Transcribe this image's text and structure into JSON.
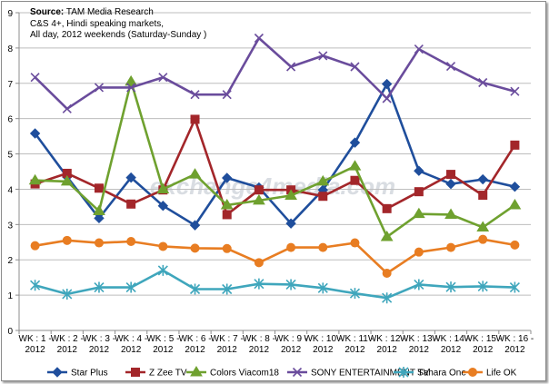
{
  "chart_data": {
    "type": "line",
    "source_label": "Source:",
    "source_name": "TAM Media Research",
    "notes": [
      "C&S 4+, Hindi speaking  markets,",
      "All day, 2012 weekends (Saturday-Sunday )"
    ],
    "categories": [
      [
        "WK : 1 -",
        "2012"
      ],
      [
        "WK : 2 -",
        "2012"
      ],
      [
        "WK : 3 -",
        "2012"
      ],
      [
        "WK : 4 -",
        "2012"
      ],
      [
        "WK : 5 -",
        "2012"
      ],
      [
        "WK : 6 -",
        "2012"
      ],
      [
        "WK : 7 -",
        "2012"
      ],
      [
        "WK : 8 -",
        "2012"
      ],
      [
        "WK : 9 -",
        "2012"
      ],
      [
        "WK : 10 -",
        "2012"
      ],
      [
        "WK : 11 -",
        "2012"
      ],
      [
        "WK : 12 -",
        "2012"
      ],
      [
        "WK : 13 -",
        "2012"
      ],
      [
        "WK : 14 -",
        "2012"
      ],
      [
        "WK : 15 -",
        "2012"
      ],
      [
        "WK : 16 -",
        "2012"
      ]
    ],
    "ylim": [
      0,
      9
    ],
    "yticks": [
      0,
      1,
      2,
      3,
      4,
      5,
      6,
      7,
      8,
      9
    ],
    "grid": true,
    "series": [
      {
        "name": "Star Plus",
        "color": "#1f4e9c",
        "marker": "diamond",
        "values": [
          5.58,
          4.35,
          3.18,
          4.33,
          3.53,
          2.98,
          4.32,
          4.05,
          3.03,
          3.98,
          5.32,
          6.98,
          4.52,
          4.15,
          4.28,
          4.07
        ]
      },
      {
        "name": "Z Zee TV",
        "color": "#a3262a",
        "marker": "square",
        "values": [
          4.15,
          4.45,
          4.03,
          3.58,
          3.98,
          5.98,
          3.28,
          3.98,
          3.98,
          3.8,
          4.25,
          3.45,
          3.93,
          4.42,
          3.83,
          5.25
        ]
      },
      {
        "name": "Colors Viacom18",
        "color": "#6fa12f",
        "marker": "triangle",
        "values": [
          4.25,
          4.22,
          3.38,
          7.05,
          4.0,
          4.42,
          3.55,
          3.68,
          3.82,
          4.22,
          4.65,
          2.65,
          3.3,
          3.28,
          2.92,
          3.55
        ]
      },
      {
        "name": "SONY ENTERTAINMENT TV",
        "color": "#6a4c9c",
        "marker": "x",
        "values": [
          7.17,
          6.28,
          6.88,
          6.88,
          7.17,
          6.68,
          6.68,
          8.28,
          7.47,
          7.78,
          7.47,
          6.57,
          7.97,
          7.48,
          7.02,
          6.77
        ]
      },
      {
        "name": "Sahara One",
        "color": "#3fa6bc",
        "marker": "star",
        "values": [
          1.28,
          1.03,
          1.22,
          1.22,
          1.7,
          1.17,
          1.17,
          1.32,
          1.3,
          1.2,
          1.05,
          0.92,
          1.3,
          1.23,
          1.25,
          1.22
        ]
      },
      {
        "name": "Life OK",
        "color": "#e87d22",
        "marker": "circle",
        "values": [
          2.4,
          2.55,
          2.48,
          2.52,
          2.38,
          2.33,
          2.32,
          1.92,
          2.35,
          2.35,
          2.48,
          1.62,
          2.22,
          2.35,
          2.58,
          2.42
        ]
      }
    ]
  },
  "watermark": {
    "text": "exchange4media.com"
  }
}
